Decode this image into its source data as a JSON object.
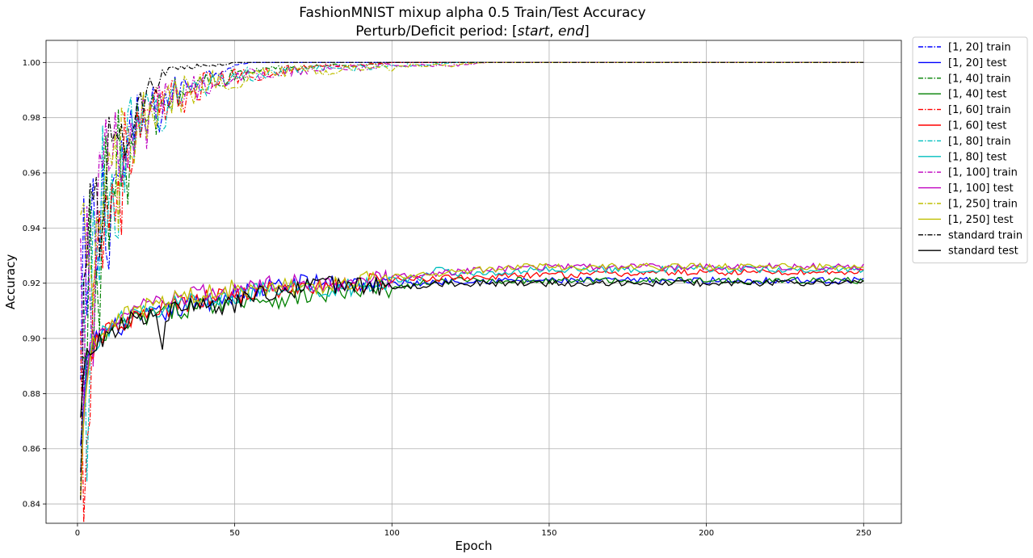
{
  "chart_data": {
    "type": "line",
    "title": "FashionMNIST mixup alpha 0.5 Train/Test Accuracy",
    "subtitle": "Perturb/Deficit period: [start, end]",
    "subtitle_parts": {
      "prefix": "Perturb/Deficit period: [",
      "start": "start",
      "sep": ", ",
      "end": "end",
      "suffix": "]"
    },
    "xlabel": "Epoch",
    "ylabel": "Accuracy",
    "xlim": [
      -10,
      262
    ],
    "ylim": [
      0.833,
      1.008
    ],
    "xticks": [
      0,
      50,
      100,
      150,
      200,
      250
    ],
    "yticks": [
      0.84,
      0.86,
      0.88,
      0.9,
      0.92,
      0.94,
      0.96,
      0.98,
      1.0
    ],
    "grid": true,
    "legend_position": "outside top-right",
    "series": [
      {
        "name": "[1, 20] train",
        "color": "#0000ff",
        "style": "dashdot",
        "kind": "train",
        "x": [
          1,
          2,
          3,
          4,
          6,
          8,
          10,
          13,
          16,
          20,
          25,
          30,
          35,
          40,
          45,
          50,
          55,
          60,
          250
        ],
        "y": [
          0.865,
          0.885,
          0.905,
          0.92,
          0.935,
          0.945,
          0.952,
          0.96,
          0.968,
          0.975,
          0.982,
          0.988,
          0.992,
          0.995,
          0.997,
          0.999,
          1.0,
          1.0,
          1.0
        ]
      },
      {
        "name": "[1, 20] test",
        "color": "#0000ff",
        "style": "solid",
        "kind": "test",
        "x": [
          1,
          2,
          3,
          4,
          6,
          8,
          10,
          15,
          20,
          30,
          40,
          50,
          60,
          70,
          80,
          90,
          100,
          110,
          120,
          150,
          200,
          250
        ],
        "y": [
          0.86,
          0.875,
          0.89,
          0.897,
          0.9,
          0.902,
          0.903,
          0.905,
          0.907,
          0.91,
          0.913,
          0.916,
          0.918,
          0.92,
          0.92,
          0.92,
          0.92,
          0.92,
          0.921,
          0.921,
          0.921,
          0.921
        ]
      },
      {
        "name": "[1, 40] train",
        "color": "#008000",
        "style": "dashdot",
        "kind": "train",
        "x": [
          1,
          2,
          3,
          4,
          6,
          8,
          10,
          13,
          16,
          20,
          25,
          30,
          35,
          40,
          45,
          50,
          60,
          70,
          80,
          90,
          100,
          250
        ],
        "y": [
          0.86,
          0.882,
          0.902,
          0.918,
          0.934,
          0.944,
          0.951,
          0.959,
          0.967,
          0.974,
          0.981,
          0.987,
          0.99,
          0.993,
          0.994,
          0.995,
          0.997,
          0.998,
          0.999,
          0.999,
          1.0,
          1.0
        ]
      },
      {
        "name": "[1, 40] test",
        "color": "#008000",
        "style": "solid",
        "kind": "test",
        "x": [
          1,
          2,
          3,
          4,
          6,
          8,
          10,
          15,
          20,
          30,
          40,
          50,
          55,
          60,
          70,
          80,
          90,
          100,
          110,
          120,
          150,
          200,
          250
        ],
        "y": [
          0.85,
          0.872,
          0.885,
          0.893,
          0.898,
          0.9,
          0.902,
          0.905,
          0.907,
          0.91,
          0.912,
          0.914,
          0.915,
          0.914,
          0.915,
          0.916,
          0.917,
          0.918,
          0.92,
          0.921,
          0.921,
          0.921,
          0.921
        ]
      },
      {
        "name": "[1, 60] train",
        "color": "#ff0000",
        "style": "dashdot",
        "kind": "train",
        "x": [
          1,
          2,
          3,
          4,
          6,
          8,
          10,
          13,
          16,
          20,
          25,
          30,
          35,
          40,
          50,
          60,
          70,
          80,
          90,
          100,
          110,
          120,
          250
        ],
        "y": [
          0.855,
          0.88,
          0.9,
          0.916,
          0.932,
          0.942,
          0.95,
          0.958,
          0.966,
          0.973,
          0.98,
          0.985,
          0.989,
          0.992,
          0.995,
          0.996,
          0.998,
          0.999,
          0.999,
          1.0,
          1.0,
          1.0,
          1.0
        ]
      },
      {
        "name": "[1, 60] test",
        "color": "#ff0000",
        "style": "solid",
        "kind": "test",
        "x": [
          1,
          2,
          3,
          4,
          6,
          8,
          10,
          15,
          20,
          30,
          40,
          50,
          60,
          70,
          80,
          90,
          100,
          120,
          150,
          200,
          250
        ],
        "y": [
          0.84,
          0.868,
          0.884,
          0.893,
          0.898,
          0.901,
          0.903,
          0.906,
          0.908,
          0.911,
          0.914,
          0.916,
          0.917,
          0.918,
          0.919,
          0.92,
          0.921,
          0.922,
          0.923,
          0.924,
          0.924
        ]
      },
      {
        "name": "[1, 80] train",
        "color": "#00bfbf",
        "style": "dashdot",
        "kind": "train",
        "x": [
          1,
          2,
          3,
          4,
          6,
          8,
          10,
          13,
          16,
          20,
          25,
          30,
          35,
          40,
          50,
          60,
          70,
          80,
          90,
          100,
          110,
          120,
          250
        ],
        "y": [
          0.86,
          0.883,
          0.903,
          0.918,
          0.934,
          0.944,
          0.952,
          0.96,
          0.967,
          0.974,
          0.981,
          0.986,
          0.99,
          0.992,
          0.995,
          0.996,
          0.997,
          0.998,
          0.998,
          0.999,
          0.999,
          1.0,
          1.0
        ]
      },
      {
        "name": "[1, 80] test",
        "color": "#00bfbf",
        "style": "solid",
        "kind": "test",
        "x": [
          1,
          2,
          3,
          4,
          6,
          8,
          10,
          15,
          20,
          30,
          40,
          50,
          60,
          70,
          80,
          90,
          100,
          110,
          115,
          120,
          150,
          200,
          250
        ],
        "y": [
          0.85,
          0.872,
          0.886,
          0.894,
          0.899,
          0.902,
          0.904,
          0.907,
          0.909,
          0.912,
          0.914,
          0.916,
          0.917,
          0.918,
          0.918,
          0.919,
          0.921,
          0.922,
          0.926,
          0.923,
          0.925,
          0.925,
          0.925
        ]
      },
      {
        "name": "[1, 100] train",
        "color": "#bf00bf",
        "style": "dashdot",
        "kind": "train",
        "x": [
          1,
          2,
          3,
          4,
          6,
          8,
          10,
          13,
          16,
          20,
          25,
          30,
          35,
          40,
          50,
          60,
          70,
          80,
          90,
          100,
          110,
          120,
          130,
          250
        ],
        "y": [
          0.87,
          0.89,
          0.908,
          0.922,
          0.937,
          0.947,
          0.955,
          0.962,
          0.969,
          0.976,
          0.982,
          0.986,
          0.99,
          0.992,
          0.995,
          0.996,
          0.997,
          0.998,
          0.998,
          0.999,
          0.999,
          0.999,
          1.0,
          1.0
        ]
      },
      {
        "name": "[1, 100] test",
        "color": "#bf00bf",
        "style": "solid",
        "kind": "test",
        "x": [
          1,
          2,
          3,
          4,
          6,
          8,
          10,
          15,
          20,
          30,
          40,
          50,
          60,
          70,
          80,
          90,
          100,
          110,
          120,
          130,
          150,
          200,
          250
        ],
        "y": [
          0.848,
          0.872,
          0.887,
          0.895,
          0.9,
          0.903,
          0.905,
          0.908,
          0.911,
          0.914,
          0.916,
          0.918,
          0.919,
          0.92,
          0.92,
          0.921,
          0.922,
          0.923,
          0.924,
          0.925,
          0.926,
          0.926,
          0.926
        ]
      },
      {
        "name": "[1, 250] train",
        "color": "#bfbf00",
        "style": "dashdot",
        "kind": "train",
        "x": [
          1,
          2,
          3,
          4,
          6,
          8,
          10,
          13,
          16,
          20,
          25,
          30,
          35,
          40,
          50,
          60,
          70,
          80,
          90,
          100,
          110,
          120,
          130,
          250
        ],
        "y": [
          0.862,
          0.885,
          0.904,
          0.919,
          0.935,
          0.945,
          0.953,
          0.961,
          0.968,
          0.975,
          0.981,
          0.986,
          0.989,
          0.992,
          0.994,
          0.996,
          0.997,
          0.997,
          0.998,
          0.998,
          0.999,
          0.999,
          1.0,
          1.0
        ]
      },
      {
        "name": "[1, 250] test",
        "color": "#bfbf00",
        "style": "solid",
        "kind": "test",
        "x": [
          1,
          2,
          3,
          4,
          6,
          8,
          10,
          15,
          20,
          30,
          40,
          50,
          60,
          70,
          80,
          90,
          100,
          110,
          120,
          130,
          140,
          150,
          200,
          250
        ],
        "y": [
          0.846,
          0.87,
          0.886,
          0.895,
          0.9,
          0.903,
          0.905,
          0.908,
          0.911,
          0.914,
          0.916,
          0.918,
          0.919,
          0.919,
          0.92,
          0.921,
          0.922,
          0.923,
          0.924,
          0.925,
          0.926,
          0.926,
          0.926,
          0.926
        ]
      },
      {
        "name": "standard train",
        "color": "#000000",
        "style": "dashdot",
        "kind": "train",
        "x": [
          1,
          2,
          3,
          4,
          5,
          6,
          8,
          10,
          12,
          14,
          16,
          18,
          20,
          22,
          25,
          28,
          30,
          33,
          36,
          40,
          45,
          50,
          55,
          60,
          250
        ],
        "y": [
          0.895,
          0.915,
          0.925,
          0.935,
          0.942,
          0.948,
          0.956,
          0.962,
          0.968,
          0.974,
          0.979,
          0.983,
          0.987,
          0.99,
          0.993,
          0.995,
          0.996,
          0.997,
          0.998,
          0.999,
          0.999,
          1.0,
          1.0,
          1.0,
          1.0
        ]
      },
      {
        "name": "standard test",
        "color": "#000000",
        "style": "solid",
        "kind": "test",
        "x": [
          1,
          2,
          3,
          4,
          6,
          8,
          10,
          15,
          20,
          25,
          27,
          30,
          35,
          40,
          45,
          50,
          55,
          60,
          70,
          80,
          90,
          100,
          110,
          120,
          150,
          200,
          250
        ],
        "y": [
          0.874,
          0.889,
          0.893,
          0.895,
          0.898,
          0.9,
          0.902,
          0.905,
          0.908,
          0.909,
          0.899,
          0.91,
          0.911,
          0.912,
          0.911,
          0.912,
          0.915,
          0.917,
          0.918,
          0.919,
          0.919,
          0.919,
          0.919,
          0.92,
          0.92,
          0.92,
          0.92
        ]
      }
    ]
  }
}
